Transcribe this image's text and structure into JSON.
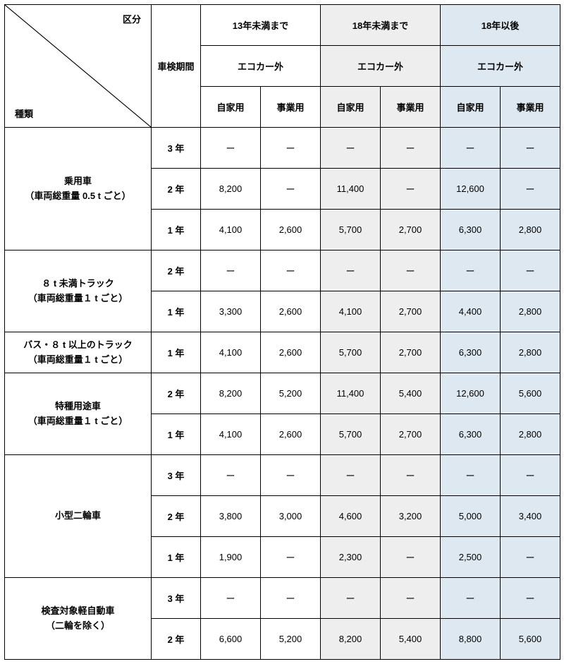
{
  "header": {
    "top_label": "区分",
    "bottom_label": "種類",
    "period_label": "車検期間",
    "age_groups": [
      "13年未満まで",
      "18年未満まで",
      "18年以後"
    ],
    "eco_label": "エコカー外",
    "use_labels": [
      "自家用",
      "事業用"
    ]
  },
  "table": {
    "column_bg": [
      "",
      "",
      "",
      "",
      "bg2",
      "bg2",
      "bg3",
      "bg3"
    ],
    "widths": [
      208,
      70,
      85,
      85,
      85,
      85,
      85,
      85
    ],
    "categories": [
      {
        "name_line1": "乗用車",
        "name_line2": "（車両総重量 0.5 t ごと）",
        "rows": [
          {
            "period": "3 年",
            "v": [
              "ー",
              "ー",
              "ー",
              "ー",
              "ー",
              "ー"
            ]
          },
          {
            "period": "2 年",
            "v": [
              "8,200",
              "ー",
              "11,400",
              "ー",
              "12,600",
              "ー"
            ]
          },
          {
            "period": "1 年",
            "v": [
              "4,100",
              "2,600",
              "5,700",
              "2,700",
              "6,300",
              "2,800"
            ]
          }
        ]
      },
      {
        "name_line1": "８ t 未満トラック",
        "name_line2": "（車両総重量１ t ごと）",
        "rows": [
          {
            "period": "2 年",
            "v": [
              "ー",
              "ー",
              "ー",
              "ー",
              "ー",
              "ー"
            ]
          },
          {
            "period": "1 年",
            "v": [
              "3,300",
              "2,600",
              "4,100",
              "2,700",
              "4,400",
              "2,800"
            ]
          }
        ]
      },
      {
        "name_line1": "バス・８ t 以上のトラック",
        "name_line2": "（車両総重量１ t ごと）",
        "rows": [
          {
            "period": "1 年",
            "v": [
              "4,100",
              "2,600",
              "5,700",
              "2,700",
              "6,300",
              "2,800"
            ]
          }
        ]
      },
      {
        "name_line1": "特種用途車",
        "name_line2": "（車両総重量１ t ごと）",
        "rows": [
          {
            "period": "2 年",
            "v": [
              "8,200",
              "5,200",
              "11,400",
              "5,400",
              "12,600",
              "5,600"
            ]
          },
          {
            "period": "1 年",
            "v": [
              "4,100",
              "2,600",
              "5,700",
              "2,700",
              "6,300",
              "2,800"
            ]
          }
        ]
      },
      {
        "name_line1": "小型二輪車",
        "name_line2": "",
        "rows": [
          {
            "period": "3 年",
            "v": [
              "ー",
              "ー",
              "ー",
              "ー",
              "ー",
              "ー"
            ]
          },
          {
            "period": "2 年",
            "v": [
              "3,800",
              "3,000",
              "4,600",
              "3,200",
              "5,000",
              "3,400"
            ]
          },
          {
            "period": "1 年",
            "v": [
              "1,900",
              "ー",
              "2,300",
              "ー",
              "2,500",
              "ー"
            ]
          }
        ]
      },
      {
        "name_line1": "検査対象軽自動車",
        "name_line2": "（二輪を除く）",
        "rows": [
          {
            "period": "3 年",
            "v": [
              "ー",
              "ー",
              "ー",
              "ー",
              "ー",
              "ー"
            ]
          },
          {
            "period": "2 年",
            "v": [
              "6,600",
              "5,200",
              "8,200",
              "5,400",
              "8,800",
              "5,600"
            ]
          }
        ]
      }
    ]
  }
}
